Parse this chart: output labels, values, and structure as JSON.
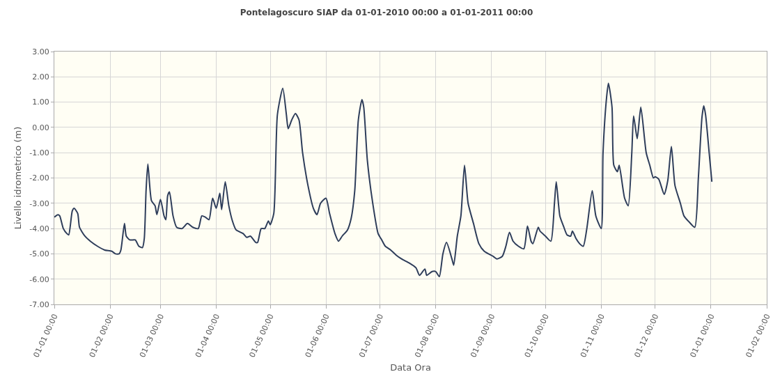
{
  "chart_data": {
    "type": "line",
    "title": "Pontelagoscuro SIAP da 01-01-2010 00:00 a 01-01-2011 00:00",
    "xlabel": "Data Ora",
    "ylabel": "Livello idrometrico (m)",
    "x": [
      "2010-01-01",
      "2010-01-03",
      "2010-01-04",
      "2010-01-06",
      "2010-01-08",
      "2010-01-09",
      "2010-01-11",
      "2010-01-12",
      "2010-01-14",
      "2010-01-15",
      "2010-01-18",
      "2010-01-21",
      "2010-01-25",
      "2010-01-29",
      "2010-02-02",
      "2010-02-04",
      "2010-02-06",
      "2010-02-07",
      "2010-02-09",
      "2010-02-10",
      "2010-02-12",
      "2010-02-15",
      "2010-02-17",
      "2010-02-19",
      "2010-02-20",
      "2010-02-21",
      "2010-02-22",
      "2010-02-24",
      "2010-02-26",
      "2010-02-27",
      "2010-03-01",
      "2010-03-03",
      "2010-03-04",
      "2010-03-05",
      "2010-03-06",
      "2010-03-08",
      "2010-03-10",
      "2010-03-13",
      "2010-03-16",
      "2010-03-19",
      "2010-03-22",
      "2010-03-24",
      "2010-03-26",
      "2010-03-28",
      "2010-03-30",
      "2010-04-01",
      "2010-04-03",
      "2010-04-04",
      "2010-04-06",
      "2010-04-08",
      "2010-04-10",
      "2010-04-12",
      "2010-04-16",
      "2010-04-18",
      "2010-04-20",
      "2010-04-23",
      "2010-04-24",
      "2010-04-26",
      "2010-04-28",
      "2010-04-30",
      "2010-05-01",
      "2010-05-03",
      "2010-05-05",
      "2010-05-08",
      "2010-05-10",
      "2010-05-11",
      "2010-05-13",
      "2010-05-15",
      "2010-05-17",
      "2010-05-19",
      "2010-05-22",
      "2010-05-25",
      "2010-05-27",
      "2010-05-29",
      "2010-06-01",
      "2010-06-03",
      "2010-06-06",
      "2010-06-08",
      "2010-06-10",
      "2010-06-13",
      "2010-06-15",
      "2010-06-17",
      "2010-06-19",
      "2010-06-21",
      "2010-06-22",
      "2010-06-24",
      "2010-06-27",
      "2010-06-30",
      "2010-07-02",
      "2010-07-04",
      "2010-07-07",
      "2010-07-10",
      "2010-07-13",
      "2010-07-17",
      "2010-07-21",
      "2010-07-23",
      "2010-07-26",
      "2010-07-27",
      "2010-07-30",
      "2010-08-01",
      "2010-08-03",
      "2010-08-05",
      "2010-08-07",
      "2010-08-10",
      "2010-08-11",
      "2010-08-13",
      "2010-08-15",
      "2010-08-17",
      "2010-08-19",
      "2010-08-22",
      "2010-08-25",
      "2010-08-28",
      "2010-09-02",
      "2010-09-04",
      "2010-09-07",
      "2010-09-09",
      "2010-09-11",
      "2010-09-13",
      "2010-09-16",
      "2010-09-19",
      "2010-09-21",
      "2010-09-23",
      "2010-09-24",
      "2010-09-27",
      "2010-09-28",
      "2010-10-01",
      "2010-10-04",
      "2010-10-06",
      "2010-10-07",
      "2010-10-09",
      "2010-10-11",
      "2010-10-13",
      "2010-10-15",
      "2010-10-16",
      "2010-10-18",
      "2010-10-20",
      "2010-10-22",
      "2010-10-24",
      "2010-10-27",
      "2010-10-29",
      "2010-11-01",
      "2010-11-02",
      "2010-11-04",
      "2010-11-05",
      "2010-11-07",
      "2010-11-08",
      "2010-11-10",
      "2010-11-11",
      "2010-11-14",
      "2010-11-16",
      "2010-11-18",
      "2010-11-19",
      "2010-11-21",
      "2010-11-23",
      "2010-11-26",
      "2010-11-28",
      "2010-11-30",
      "2010-12-01",
      "2010-12-03",
      "2010-12-06",
      "2010-12-08",
      "2010-12-10",
      "2010-12-12",
      "2010-12-15",
      "2010-12-17",
      "2010-12-20",
      "2010-12-23",
      "2010-12-25",
      "2010-12-27",
      "2010-12-28",
      "2010-12-29",
      "2010-12-31",
      "2011-01-01T12:00"
    ],
    "series": [
      {
        "color": "#2e3d5a",
        "values": [
          -3.55,
          -3.45,
          -3.5,
          -4.0,
          -4.2,
          -4.25,
          -3.3,
          -3.2,
          -3.4,
          -3.95,
          -4.3,
          -4.5,
          -4.7,
          -4.85,
          -4.9,
          -5.0,
          -5.0,
          -4.85,
          -3.8,
          -4.3,
          -4.45,
          -4.45,
          -4.7,
          -4.75,
          -4.4,
          -2.5,
          -1.45,
          -2.9,
          -3.1,
          -3.45,
          -2.85,
          -3.5,
          -3.65,
          -2.7,
          -2.55,
          -3.5,
          -3.95,
          -4.0,
          -3.8,
          -3.95,
          -4.0,
          -3.5,
          -3.55,
          -3.65,
          -2.8,
          -3.2,
          -2.6,
          -3.25,
          -2.15,
          -3.1,
          -3.7,
          -4.05,
          -4.2,
          -4.35,
          -4.3,
          -4.55,
          -4.55,
          -4.0,
          -4.0,
          -3.7,
          -3.85,
          -3.4,
          0.5,
          1.55,
          0.5,
          -0.05,
          0.3,
          0.55,
          0.3,
          -1.0,
          -2.3,
          -3.2,
          -3.45,
          -3.0,
          -2.8,
          -3.4,
          -4.2,
          -4.5,
          -4.3,
          -4.05,
          -3.6,
          -2.5,
          0.3,
          1.1,
          0.8,
          -1.3,
          -3.0,
          -4.2,
          -4.45,
          -4.7,
          -4.85,
          -5.05,
          -5.2,
          -5.35,
          -5.55,
          -5.85,
          -5.6,
          -5.85,
          -5.7,
          -5.7,
          -5.9,
          -5.0,
          -4.55,
          -5.2,
          -5.45,
          -4.3,
          -3.5,
          -1.5,
          -3.0,
          -3.8,
          -4.6,
          -4.9,
          -5.1,
          -5.2,
          -5.1,
          -4.7,
          -4.15,
          -4.5,
          -4.7,
          -4.8,
          -3.9,
          -4.5,
          -4.6,
          -3.95,
          -4.1,
          -4.3,
          -4.5,
          -3.0,
          -2.15,
          -3.5,
          -3.9,
          -4.25,
          -4.3,
          -4.1,
          -4.4,
          -4.6,
          -4.7,
          -4.0,
          -2.5,
          -3.5,
          -4.0,
          -1.0,
          1.2,
          1.75,
          0.8,
          -1.5,
          -1.75,
          -1.5,
          -2.8,
          -3.1,
          -1.0,
          0.45,
          -0.45,
          0.8,
          -1.0,
          -1.5,
          -2.0,
          -1.95,
          -2.05,
          -2.65,
          -2.1,
          -0.75,
          -2.3,
          -3.0,
          -3.5,
          -3.75,
          -3.95,
          -2.0,
          0.4,
          0.85,
          0.5,
          -1.0,
          -2.15
        ]
      }
    ],
    "xlim": [
      "2010-01-01",
      "2011-02-01"
    ],
    "xticks": [
      {
        "value": "2010-01-01",
        "label": "01-01 00:00"
      },
      {
        "value": "2010-02-01",
        "label": "01-02 00:00"
      },
      {
        "value": "2010-03-01",
        "label": "01-03 00:00"
      },
      {
        "value": "2010-04-01",
        "label": "01-04 00:00"
      },
      {
        "value": "2010-05-01",
        "label": "01-05 00:00"
      },
      {
        "value": "2010-06-01",
        "label": "01-06 00:00"
      },
      {
        "value": "2010-07-01",
        "label": "01-07 00:00"
      },
      {
        "value": "2010-08-01",
        "label": "01-08 00:00"
      },
      {
        "value": "2010-09-01",
        "label": "01-09 00:00"
      },
      {
        "value": "2010-10-01",
        "label": "01-10 00:00"
      },
      {
        "value": "2010-11-01",
        "label": "01-11 00:00"
      },
      {
        "value": "2010-12-01",
        "label": "01-12 00:00"
      },
      {
        "value": "2011-01-01",
        "label": "01-01 00:00"
      },
      {
        "value": "2011-02-01",
        "label": "01-02 00:00"
      }
    ],
    "ylim": [
      -7,
      3
    ],
    "yticks": [
      {
        "value": 3,
        "label": "3.00"
      },
      {
        "value": 2,
        "label": "2.00"
      },
      {
        "value": 1,
        "label": "1.00"
      },
      {
        "value": 0,
        "label": "0.00"
      },
      {
        "value": -1,
        "label": "-1.00"
      },
      {
        "value": -2,
        "label": "-2.00"
      },
      {
        "value": -3,
        "label": "-3.00"
      },
      {
        "value": -4,
        "label": "-4.00"
      },
      {
        "value": -5,
        "label": "-5.00"
      },
      {
        "value": -6,
        "label": "-6.00"
      },
      {
        "value": -7,
        "label": "-7.00"
      }
    ],
    "grid": true,
    "marker": "none",
    "line_style": "solid"
  }
}
